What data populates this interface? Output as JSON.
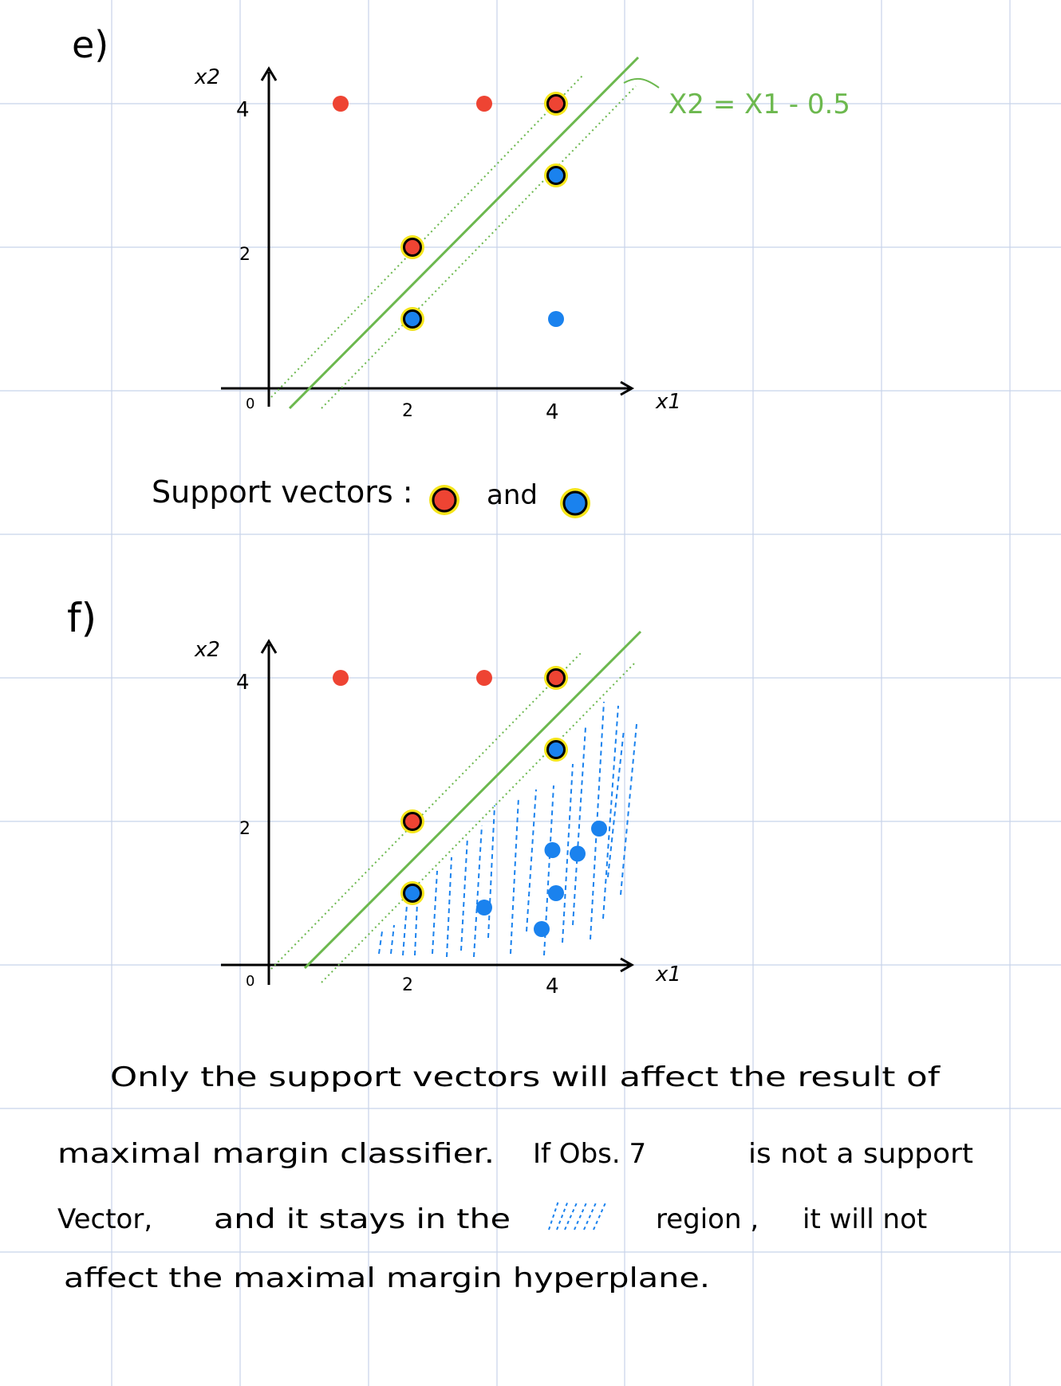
{
  "part_e": {
    "label": "e)",
    "plot": {
      "x_axis_label": "x1",
      "y_axis_label": "x2",
      "origin_label": "0",
      "x_ticks": [
        "2",
        "4"
      ],
      "y_ticks": [
        "2",
        "4"
      ],
      "hyperplane_label": "X2 = X1 - 0.5",
      "points": [
        {
          "x": 1,
          "y": 4,
          "cls": "red",
          "support": false
        },
        {
          "x": 3,
          "y": 4,
          "cls": "red",
          "support": false
        },
        {
          "x": 4,
          "y": 4,
          "cls": "red",
          "support": true
        },
        {
          "x": 2,
          "y": 2,
          "cls": "red",
          "support": true
        },
        {
          "x": 4,
          "y": 3,
          "cls": "blue",
          "support": true
        },
        {
          "x": 2,
          "y": 1,
          "cls": "blue",
          "support": true
        },
        {
          "x": 4,
          "y": 1,
          "cls": "blue",
          "support": false
        }
      ]
    },
    "support_text": "Support vectors :",
    "and_text": "and"
  },
  "part_f": {
    "label": "f)",
    "plot": {
      "x_axis_label": "x1",
      "y_axis_label": "x2",
      "origin_label": "0",
      "x_ticks": [
        "2",
        "4"
      ],
      "y_ticks": [
        "2",
        "4"
      ],
      "points": [
        {
          "x": 1,
          "y": 4,
          "cls": "red",
          "support": false
        },
        {
          "x": 3,
          "y": 4,
          "cls": "red",
          "support": false
        },
        {
          "x": 4,
          "y": 4,
          "cls": "red",
          "support": true
        },
        {
          "x": 2,
          "y": 2,
          "cls": "red",
          "support": true
        },
        {
          "x": 4,
          "y": 3,
          "cls": "blue",
          "support": true
        },
        {
          "x": 2,
          "y": 1,
          "cls": "blue",
          "support": true
        },
        {
          "x": 3,
          "y": 0.8,
          "cls": "blue",
          "support": false
        },
        {
          "x": 3.8,
          "y": 0.5,
          "cls": "blue",
          "support": false
        },
        {
          "x": 4,
          "y": 1,
          "cls": "blue",
          "support": false
        },
        {
          "x": 3.95,
          "y": 1.6,
          "cls": "blue",
          "support": false
        },
        {
          "x": 4.3,
          "y": 1.55,
          "cls": "blue",
          "support": false
        },
        {
          "x": 4.6,
          "y": 1.9,
          "cls": "blue",
          "support": false
        }
      ]
    }
  },
  "conclusion": {
    "line1": "Only the support vectors will affect the result of",
    "line2a": "maximal margin classifier.",
    "line2b": "If Obs. 7",
    "line2c": "is not a support",
    "line3a": "Vector,",
    "line3b": "and it stays in the",
    "line3c": "region ,",
    "line3d": "it will not",
    "line4": "affect the maximal margin hyperplane."
  },
  "colors": {
    "red": "#ee4433",
    "blue": "#1a82ee",
    "green": "#6cb84e",
    "highlight": "#f5e51a",
    "grid": "#c7d3ea",
    "ink": "#000000"
  }
}
